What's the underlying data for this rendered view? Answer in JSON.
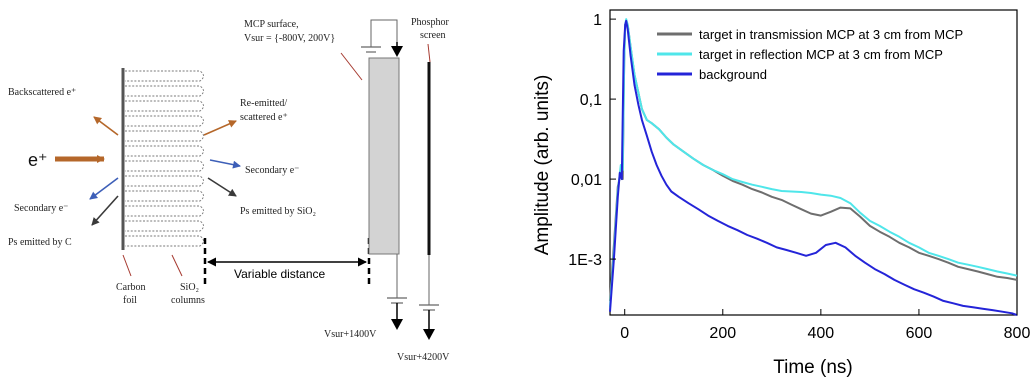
{
  "diagram": {
    "labels": {
      "mcp_surface": "MCP surface,",
      "vsur_range": "Vsur = {-800V, 200V}",
      "phosphor_1": "Phosphor",
      "phosphor_2": "screen",
      "backscattered": "Backscattered e⁺",
      "reemitted_1": "Re-emitted/",
      "reemitted_2": "scattered e⁺",
      "positron_in": "e⁺",
      "secondary_right": "Secondary e⁻",
      "secondary_left": "Secondary e⁻",
      "ps_sio2": "Ps emitted by SiO₂",
      "ps_c": "Ps emitted by C",
      "carbon_1": "Carbon",
      "carbon_2": "foil",
      "sio2_1": "SiO₂",
      "sio2_2": "columns",
      "variable_distance": "Variable distance",
      "vsur_1400": "Vsur+1400V",
      "vsur_4200": "Vsur+4200V"
    },
    "colors": {
      "orange": "#b5672a",
      "blue": "#3d5fb8",
      "dark": "#3a3a3a",
      "red": "#a63a30",
      "mcp_fill": "#d3d3d3"
    }
  },
  "chart_data": {
    "type": "line",
    "xlabel": "Time (ns)",
    "ylabel": "Amplitude (arb. units)",
    "xlim": [
      -30,
      800
    ],
    "ylim": [
      0.0002,
      1.3
    ],
    "y_scale": "log",
    "x_ticks": [
      0,
      200,
      400,
      600,
      800
    ],
    "y_ticks": [
      {
        "value": 1,
        "label": "1"
      },
      {
        "value": 0.1,
        "label": "0,1"
      },
      {
        "value": 0.01,
        "label": "0,01"
      },
      {
        "value": 0.001,
        "label": "1E-3"
      }
    ],
    "legend_position": "top-right",
    "series": [
      {
        "name": "target in transmission MCP at 3 cm from MCP",
        "color": "#6e6e6e",
        "points": [
          [
            -30,
            0.0003
          ],
          [
            -22,
            0.0015
          ],
          [
            -14,
            0.008
          ],
          [
            -8,
            0.012
          ],
          [
            -4,
            0.01
          ],
          [
            -1,
            0.3
          ],
          [
            1,
            0.85
          ],
          [
            3,
            0.95
          ],
          [
            6,
            0.85
          ],
          [
            12,
            0.45
          ],
          [
            20,
            0.2
          ],
          [
            28,
            0.12
          ],
          [
            35,
            0.075
          ],
          [
            45,
            0.055
          ],
          [
            55,
            0.05
          ],
          [
            70,
            0.042
          ],
          [
            85,
            0.033
          ],
          [
            100,
            0.027
          ],
          [
            120,
            0.022
          ],
          [
            140,
            0.018
          ],
          [
            160,
            0.015
          ],
          [
            180,
            0.013
          ],
          [
            200,
            0.011
          ],
          [
            220,
            0.0095
          ],
          [
            240,
            0.0085
          ],
          [
            260,
            0.0075
          ],
          [
            280,
            0.0068
          ],
          [
            300,
            0.006
          ],
          [
            320,
            0.0055
          ],
          [
            340,
            0.0048
          ],
          [
            360,
            0.0042
          ],
          [
            380,
            0.0037
          ],
          [
            400,
            0.0035
          ],
          [
            420,
            0.0039
          ],
          [
            440,
            0.0044
          ],
          [
            460,
            0.0043
          ],
          [
            480,
            0.0034
          ],
          [
            500,
            0.0026
          ],
          [
            520,
            0.0022
          ],
          [
            540,
            0.0019
          ],
          [
            560,
            0.0016
          ],
          [
            580,
            0.0014
          ],
          [
            600,
            0.0012
          ],
          [
            620,
            0.0011
          ],
          [
            640,
            0.001
          ],
          [
            660,
            0.0009
          ],
          [
            680,
            0.0008
          ],
          [
            700,
            0.00075
          ],
          [
            720,
            0.0007
          ],
          [
            740,
            0.00065
          ],
          [
            760,
            0.0006
          ],
          [
            780,
            0.00058
          ],
          [
            800,
            0.00055
          ]
        ]
      },
      {
        "name": "target in reflection MCP at 3 cm from MCP",
        "color": "#4fe6ea",
        "points": [
          [
            -30,
            0.00025
          ],
          [
            -22,
            0.0012
          ],
          [
            -14,
            0.007
          ],
          [
            -8,
            0.015
          ],
          [
            -4,
            0.013
          ],
          [
            -1,
            0.3
          ],
          [
            1,
            0.85
          ],
          [
            3,
            1.0
          ],
          [
            6,
            0.85
          ],
          [
            12,
            0.45
          ],
          [
            20,
            0.2
          ],
          [
            28,
            0.12
          ],
          [
            35,
            0.075
          ],
          [
            45,
            0.055
          ],
          [
            55,
            0.05
          ],
          [
            70,
            0.042
          ],
          [
            85,
            0.033
          ],
          [
            100,
            0.027
          ],
          [
            120,
            0.022
          ],
          [
            140,
            0.018
          ],
          [
            160,
            0.015
          ],
          [
            180,
            0.013
          ],
          [
            200,
            0.0115
          ],
          [
            220,
            0.01
          ],
          [
            240,
            0.0092
          ],
          [
            260,
            0.0085
          ],
          [
            280,
            0.008
          ],
          [
            300,
            0.0075
          ],
          [
            320,
            0.0071
          ],
          [
            340,
            0.007
          ],
          [
            360,
            0.0069
          ],
          [
            380,
            0.0067
          ],
          [
            400,
            0.0064
          ],
          [
            420,
            0.0062
          ],
          [
            440,
            0.0058
          ],
          [
            460,
            0.005
          ],
          [
            480,
            0.0038
          ],
          [
            500,
            0.003
          ],
          [
            520,
            0.0026
          ],
          [
            540,
            0.0022
          ],
          [
            560,
            0.0019
          ],
          [
            580,
            0.0016
          ],
          [
            600,
            0.0014
          ],
          [
            620,
            0.0012
          ],
          [
            640,
            0.0011
          ],
          [
            660,
            0.001
          ],
          [
            680,
            0.0009
          ],
          [
            700,
            0.00085
          ],
          [
            720,
            0.0008
          ],
          [
            740,
            0.00075
          ],
          [
            760,
            0.0007
          ],
          [
            780,
            0.00066
          ],
          [
            800,
            0.00062
          ]
        ]
      },
      {
        "name": "background",
        "color": "#2424d8",
        "points": [
          [
            -30,
            0.00022
          ],
          [
            -22,
            0.001
          ],
          [
            -14,
            0.006
          ],
          [
            -10,
            0.012
          ],
          [
            -6,
            0.01
          ],
          [
            -2,
            0.4
          ],
          [
            1,
            0.85
          ],
          [
            3,
            0.95
          ],
          [
            6,
            0.75
          ],
          [
            12,
            0.35
          ],
          [
            20,
            0.15
          ],
          [
            28,
            0.085
          ],
          [
            35,
            0.055
          ],
          [
            45,
            0.035
          ],
          [
            55,
            0.022
          ],
          [
            65,
            0.015
          ],
          [
            75,
            0.011
          ],
          [
            85,
            0.0085
          ],
          [
            95,
            0.007
          ],
          [
            110,
            0.006
          ],
          [
            130,
            0.005
          ],
          [
            150,
            0.0042
          ],
          [
            170,
            0.0035
          ],
          [
            190,
            0.003
          ],
          [
            210,
            0.0026
          ],
          [
            230,
            0.0023
          ],
          [
            250,
            0.002
          ],
          [
            270,
            0.0018
          ],
          [
            290,
            0.0016
          ],
          [
            310,
            0.0014
          ],
          [
            330,
            0.0013
          ],
          [
            350,
            0.0012
          ],
          [
            370,
            0.0011
          ],
          [
            390,
            0.0012
          ],
          [
            410,
            0.0015
          ],
          [
            430,
            0.0016
          ],
          [
            450,
            0.0014
          ],
          [
            470,
            0.0011
          ],
          [
            490,
            0.0009
          ],
          [
            510,
            0.00075
          ],
          [
            530,
            0.00065
          ],
          [
            550,
            0.00055
          ],
          [
            570,
            0.00048
          ],
          [
            590,
            0.00042
          ],
          [
            610,
            0.00038
          ],
          [
            630,
            0.00034
          ],
          [
            650,
            0.0003
          ],
          [
            670,
            0.00028
          ],
          [
            690,
            0.00026
          ],
          [
            710,
            0.00025
          ],
          [
            730,
            0.00024
          ],
          [
            750,
            0.00023
          ],
          [
            770,
            0.00022
          ],
          [
            790,
            0.00021
          ],
          [
            800,
            0.0002
          ]
        ]
      }
    ]
  }
}
